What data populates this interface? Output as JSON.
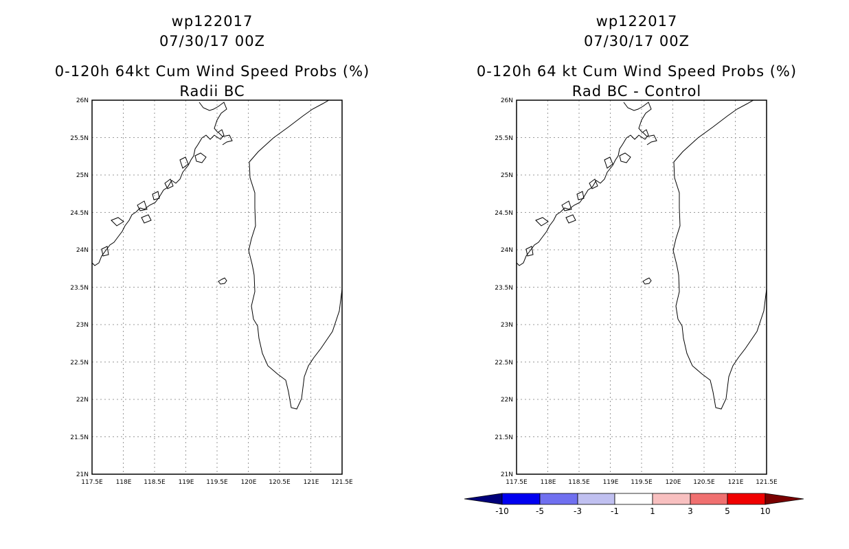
{
  "panels": [
    {
      "storm_id": "wp122017",
      "datetime": "07/30/17 00Z",
      "product": "0-120h 64kt Cum Wind Speed Probs (%)",
      "subtitle": "Radii BC"
    },
    {
      "storm_id": "wp122017",
      "datetime": "07/30/17 00Z",
      "product": "0-120h 64 kt Cum Wind Speed Probs (%)",
      "subtitle": "Rad BC - Control"
    }
  ],
  "map": {
    "lat_labels": [
      "26N",
      "25.5N",
      "25N",
      "24.5N",
      "24N",
      "23.5N",
      "23N",
      "22.5N",
      "22N",
      "21.5N",
      "21N"
    ],
    "lon_labels": [
      "117.5E",
      "118E",
      "118.5E",
      "119E",
      "119.5E",
      "120E",
      "120.5E",
      "121E",
      "121.5E"
    ],
    "lat_range": [
      21,
      26
    ],
    "lon_range": [
      117.5,
      121.5
    ]
  },
  "colorbar": {
    "labels": [
      "-10",
      "-5",
      "-3",
      "-1",
      "1",
      "3",
      "5",
      "10"
    ],
    "colors": [
      "#00007a",
      "#0000f0",
      "#7070f0",
      "#c0c0f0",
      "#ffffff",
      "#f8c0c0",
      "#f07070",
      "#f00000",
      "#7a0000"
    ]
  }
}
